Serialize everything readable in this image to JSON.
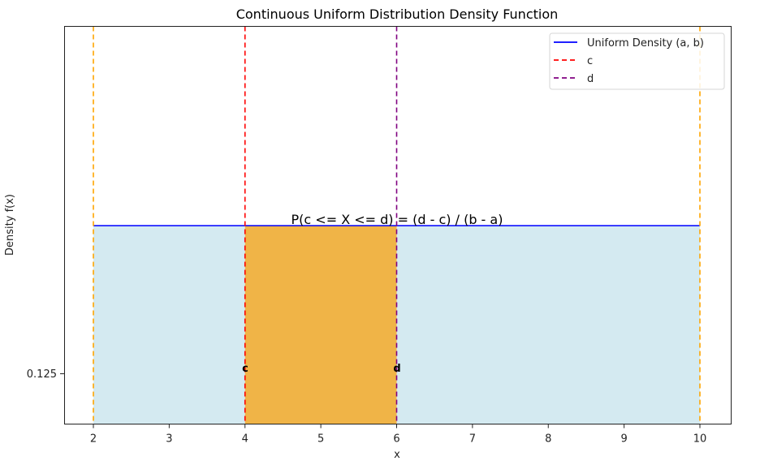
{
  "chart_data": {
    "type": "area",
    "title": "Continuous Uniform Distribution Density Function",
    "xlabel": "x",
    "ylabel": "Density f(x)",
    "xlim": [
      1.6,
      10.4
    ],
    "ylim": [
      0,
      0.25
    ],
    "x_ticks": [
      2,
      3,
      4,
      5,
      6,
      7,
      8,
      9,
      10
    ],
    "y_ticks": [
      0.125
    ],
    "y_tick_labels": [
      "0.125"
    ],
    "grid": false,
    "legend_position": "upper right",
    "parameters": {
      "a": 2,
      "b": 10,
      "c": 4,
      "d": 6,
      "density": 0.125
    },
    "series": [
      {
        "name": "Uniform Density (a, b)",
        "type": "line",
        "color": "#0000ff",
        "x": [
          2,
          10
        ],
        "y": [
          0.125,
          0.125
        ]
      },
      {
        "name": "c",
        "type": "vline",
        "style": "dashed",
        "color": "#ff0000",
        "x": 4
      },
      {
        "name": "d",
        "type": "vline",
        "style": "dashed",
        "color": "#800080",
        "x": 6
      }
    ],
    "bounds_lines": [
      {
        "name": "a",
        "style": "dashed",
        "color": "#ffa500",
        "x": 2
      },
      {
        "name": "b",
        "style": "dashed",
        "color": "#ffa500",
        "x": 10
      }
    ],
    "fills": [
      {
        "name": "full-density-area",
        "x": [
          2,
          10
        ],
        "y": 0.125,
        "color": "#add8e6",
        "alpha": 0.5
      },
      {
        "name": "probability-area",
        "x": [
          4,
          6
        ],
        "y": 0.125,
        "color": "#f0b447"
      }
    ],
    "annotations": [
      {
        "text": "P(c <= X <= d) = (d - c) / (b - a)",
        "x": 6,
        "y": 0.2
      },
      {
        "text": "c",
        "x": 4,
        "y": 0.125
      },
      {
        "text": "d",
        "x": 6,
        "y": 0.125
      }
    ]
  },
  "colors": {
    "uniform_line": "#0000ff",
    "c_line": "#ff0000",
    "d_line": "#800080",
    "bounds_line": "#ffa500",
    "fill_full": "#d4eaf1",
    "fill_prob": "#f0b447"
  }
}
